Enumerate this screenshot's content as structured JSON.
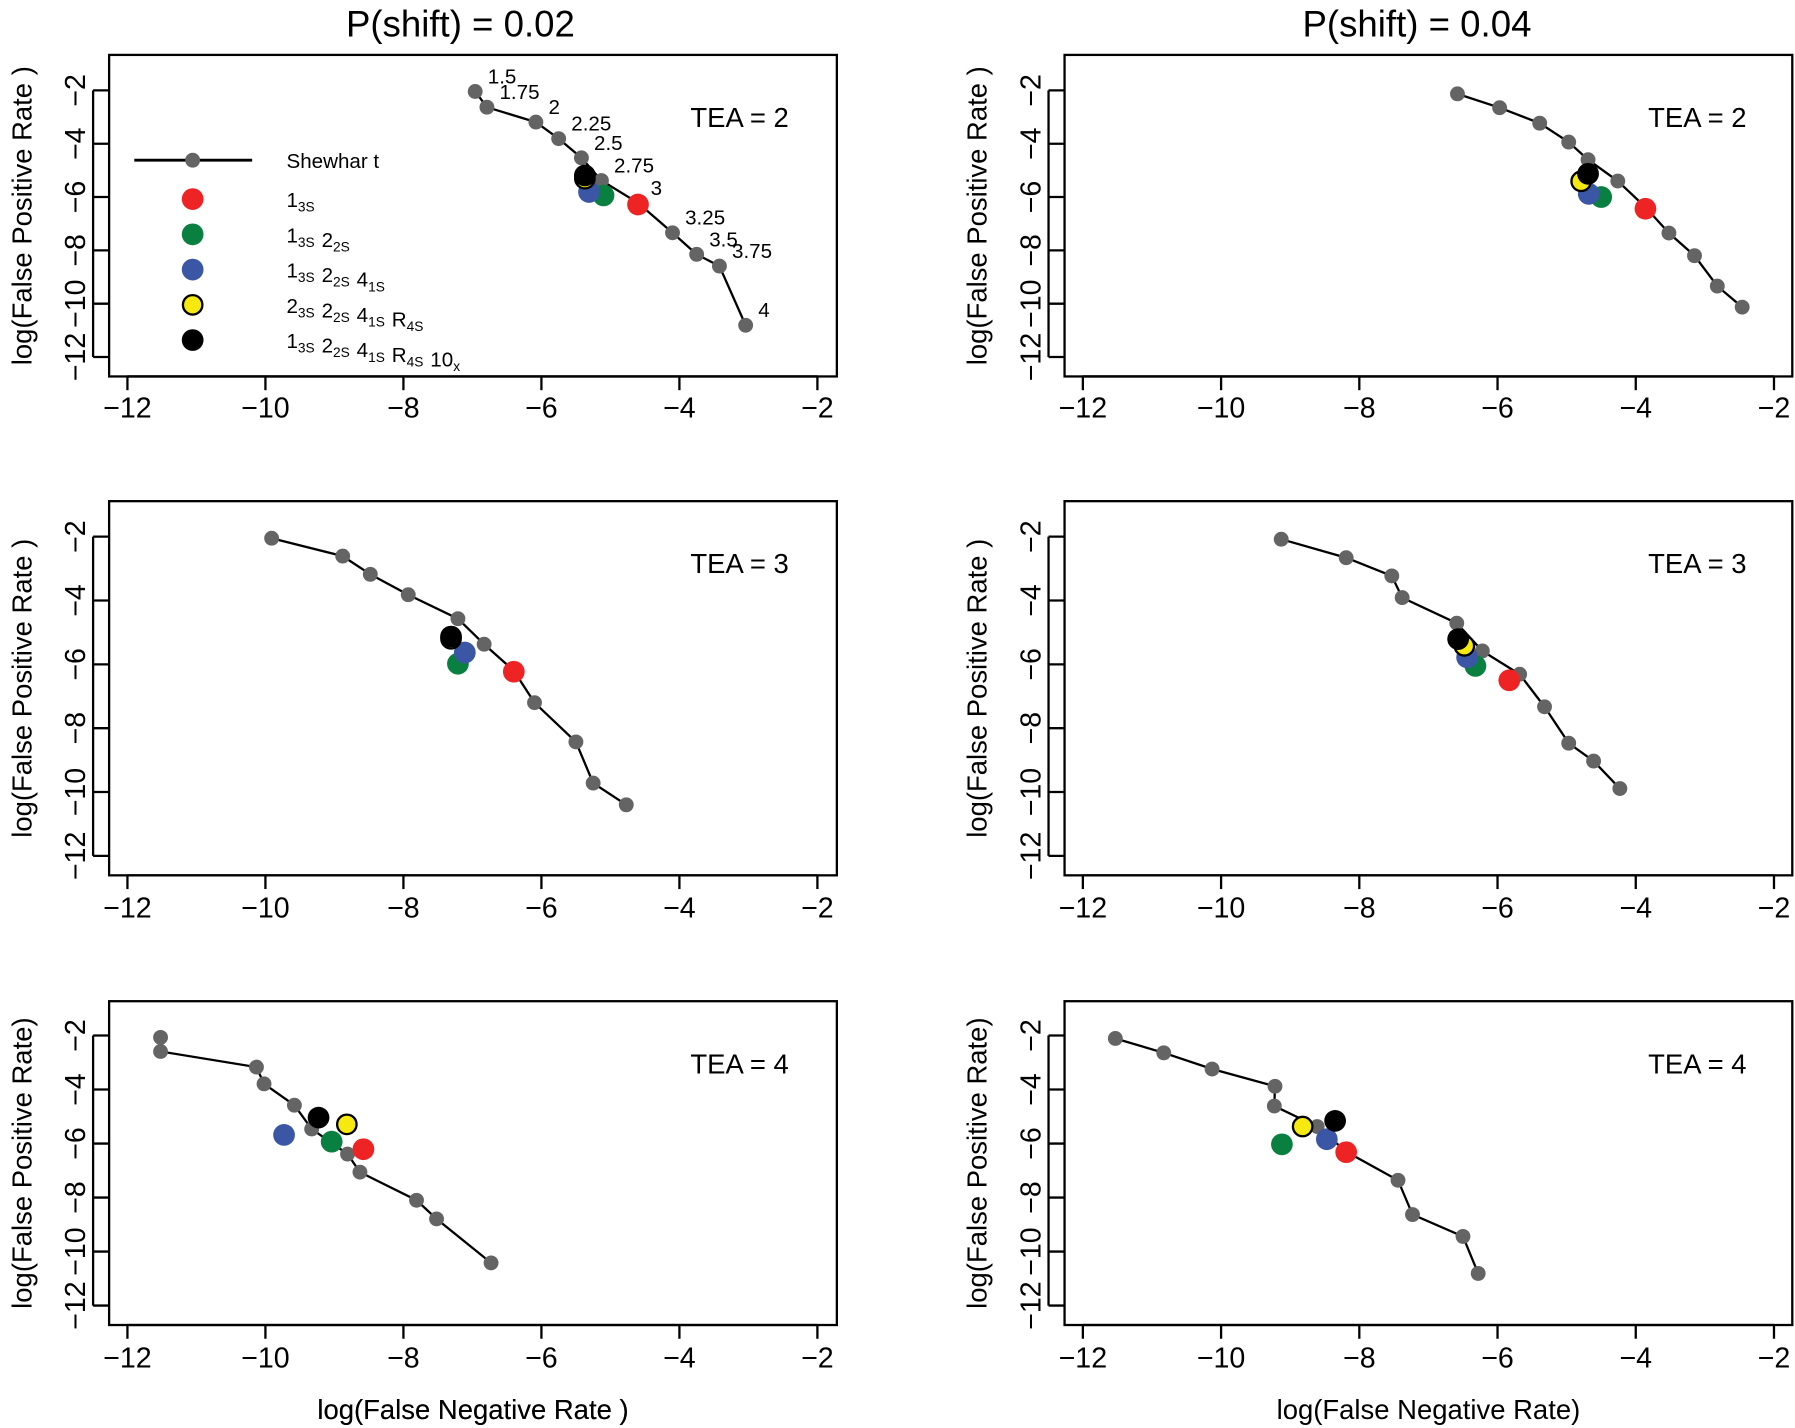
{
  "chart_data": [
    {
      "type": "line",
      "title": "P(shift) = 0.02",
      "annotation": "TEA =   2",
      "xlabel": "log(False Negative Rate    )",
      "ylabel": "log(False Positive Rate    )",
      "xlim": [
        -12,
        -2
      ],
      "ylim": [
        -12,
        -2
      ],
      "xticks": [
        "−12",
        "−10",
        "−8",
        "−6",
        "−4",
        "−2"
      ],
      "yticks": [
        "−2",
        "−4",
        "−6",
        "−8",
        "−10",
        "−12"
      ],
      "shewhart": {
        "name": "Shewhar t",
        "labels": [
          "1.5",
          "1.75",
          "2",
          "2.25",
          "2.5",
          "2.75",
          "3",
          "3.25",
          "3.5",
          "3.75",
          "4"
        ],
        "x": [
          -6.96,
          -6.79,
          -6.08,
          -5.75,
          -5.42,
          -5.13,
          -4.6,
          -4.1,
          -3.75,
          -3.42,
          -3.04
        ],
        "y": [
          -2.04,
          -2.63,
          -3.19,
          -3.81,
          -4.53,
          -5.38,
          -6.22,
          -7.34,
          -8.15,
          -8.59,
          -10.81
        ]
      },
      "rules": {
        "r13s": [
          -4.6,
          -6.28
        ],
        "r13s22s": [
          -5.1,
          -5.94
        ],
        "r13s22s41s": [
          -5.31,
          -5.81
        ],
        "r23s22s41sR4s": [
          -5.37,
          -5.31
        ],
        "r13s22s41sR4s10x": [
          -5.37,
          -5.19
        ]
      }
    },
    {
      "type": "line",
      "title": "P(shift) = 0.04",
      "annotation": "TEA =   2",
      "ylabel": "log(False Positive Rate    )",
      "xlim": [
        -12,
        -2
      ],
      "ylim": [
        -12,
        -2
      ],
      "xticks": [
        "−12",
        "−10",
        "−8",
        "−6",
        "−4",
        "−2"
      ],
      "yticks": [
        "−2",
        "−4",
        "−6",
        "−8",
        "−10",
        "−12"
      ],
      "shewhart": {
        "x": [
          -6.58,
          -5.97,
          -5.39,
          -4.97,
          -4.69,
          -4.26,
          -3.86,
          -3.52,
          -3.15,
          -2.82,
          -2.46
        ],
        "y": [
          -2.13,
          -2.65,
          -3.23,
          -3.94,
          -4.6,
          -5.4,
          -6.38,
          -7.35,
          -8.2,
          -9.34,
          -10.13
        ]
      },
      "rules": {
        "r13s": [
          -3.86,
          -6.44
        ],
        "r13s22s": [
          -4.5,
          -6.0
        ],
        "r13s22s41s": [
          -4.68,
          -5.88
        ],
        "r23s22s41sR4s": [
          -4.79,
          -5.41
        ],
        "r13s22s41sR4s10x": [
          -4.69,
          -5.13
        ]
      }
    },
    {
      "type": "line",
      "annotation": "TEA =   3",
      "ylabel": "log(False Positive Rate    )",
      "xlim": [
        -12,
        -2
      ],
      "ylim": [
        -12,
        -2
      ],
      "xticks": [
        "−12",
        "−10",
        "−8",
        "−6",
        "−4",
        "−2"
      ],
      "yticks": [
        "−2",
        "−4",
        "−6",
        "−8",
        "−10",
        "−12"
      ],
      "shewhart": {
        "x": [
          -9.91,
          -8.88,
          -8.48,
          -7.93,
          -7.21,
          -6.83,
          -6.4,
          -6.1,
          -5.5,
          -5.25,
          -4.77
        ],
        "y": [
          -2.05,
          -2.61,
          -3.18,
          -3.82,
          -4.57,
          -5.37,
          -6.2,
          -7.2,
          -8.43,
          -9.72,
          -10.4
        ]
      },
      "rules": {
        "r13s": [
          -6.4,
          -6.23
        ],
        "r13s22s": [
          -7.21,
          -5.98
        ],
        "r13s22s41s": [
          -7.11,
          -5.63
        ],
        "r23s22s41sR4s": [
          -7.31,
          -5.2
        ],
        "r13s22s41sR4s10x": [
          -7.31,
          -5.13
        ]
      }
    },
    {
      "type": "line",
      "annotation": "TEA =   3",
      "ylabel": "log(False Positive Rate    )",
      "xlim": [
        -12,
        -2
      ],
      "ylim": [
        -12,
        -2
      ],
      "xticks": [
        "−12",
        "−10",
        "−8",
        "−6",
        "−4",
        "−2"
      ],
      "yticks": [
        "−2",
        "−4",
        "−6",
        "−8",
        "−10",
        "−12"
      ],
      "shewhart": {
        "x": [
          -9.13,
          -8.19,
          -7.53,
          -7.38,
          -6.59,
          -6.22,
          -5.68,
          -5.32,
          -4.97,
          -4.61,
          -4.23
        ],
        "y": [
          -2.08,
          -2.66,
          -3.23,
          -3.91,
          -4.71,
          -5.58,
          -6.31,
          -7.33,
          -8.47,
          -9.03,
          -9.89
        ]
      },
      "rules": {
        "r13s": [
          -5.83,
          -6.5
        ],
        "r13s22s": [
          -6.32,
          -6.05
        ],
        "r13s22s41s": [
          -6.44,
          -5.78
        ],
        "r23s22s41sR4s": [
          -6.48,
          -5.42
        ],
        "r13s22s41sR4s10x": [
          -6.57,
          -5.21
        ]
      }
    },
    {
      "type": "line",
      "annotation": "TEA =   4",
      "xlabel": "log(False Negative Rate    )",
      "ylabel": "log(False Positive Rate)",
      "xlim": [
        -12,
        -2
      ],
      "ylim": [
        -12,
        -2
      ],
      "xticks": [
        "−12",
        "−10",
        "−8",
        "−6",
        "−4",
        "−2"
      ],
      "yticks": [
        "−2",
        "−4",
        "−6",
        "−8",
        "−10",
        "−12"
      ],
      "shewhart": {
        "x": [
          -11.52,
          -11.52,
          -10.13,
          -10.02,
          -9.58,
          -9.33,
          -8.81,
          -8.63,
          -7.81,
          -7.52,
          -6.73
        ],
        "y": [
          -2.07,
          -2.59,
          -3.17,
          -3.79,
          -4.58,
          -5.46,
          -6.39,
          -7.06,
          -8.1,
          -8.79,
          -10.42
        ]
      },
      "rules": {
        "r13s": [
          -8.58,
          -6.21
        ],
        "r13s22s": [
          -9.04,
          -5.93
        ],
        "r13s22s41s": [
          -9.73,
          -5.68
        ],
        "r23s22s41sR4s": [
          -8.82,
          -5.29
        ],
        "r13s22s41sR4s10x": [
          -9.23,
          -5.04
        ]
      }
    },
    {
      "type": "line",
      "annotation": "TEA =   4",
      "xlabel": "log(False Negative Rate)",
      "ylabel": "log(False Positive Rate)",
      "xlim": [
        -12,
        -2
      ],
      "ylim": [
        -12,
        -2
      ],
      "xticks": [
        "−12",
        "−10",
        "−8",
        "−6",
        "−4",
        "−2"
      ],
      "yticks": [
        "−2",
        "−4",
        "−6",
        "−8",
        "−10",
        "−12"
      ],
      "shewhart": {
        "x": [
          -11.53,
          -10.83,
          -10.13,
          -9.22,
          -9.23,
          -8.61,
          -8.19,
          -7.44,
          -7.23,
          -6.5,
          -6.28
        ],
        "y": [
          -2.11,
          -2.64,
          -3.24,
          -3.88,
          -4.61,
          -5.37,
          -6.3,
          -7.36,
          -8.63,
          -9.44,
          -10.81
        ]
      },
      "rules": {
        "r13s": [
          -8.19,
          -6.32
        ],
        "r13s22s": [
          -9.12,
          -6.03
        ],
        "r13s22s41s": [
          -8.47,
          -5.84
        ],
        "r23s22s41sR4s": [
          -8.82,
          -5.37
        ],
        "r13s22s41sR4s10x": [
          -8.35,
          -5.16
        ]
      }
    }
  ],
  "legend": {
    "placement": "top-left of first panel",
    "shewhart_label": "Shewhar t",
    "entries": [
      {
        "key": "r13s",
        "color": "#ee2424",
        "parts": [
          [
            "1",
            "3S"
          ]
        ]
      },
      {
        "key": "r13s22s",
        "color": "#0a8040",
        "parts": [
          [
            "1",
            "3S"
          ],
          [
            "2",
            "2S"
          ]
        ]
      },
      {
        "key": "r13s22s41s",
        "color": "#3a56a5",
        "parts": [
          [
            "1",
            "3S"
          ],
          [
            "2",
            "2S"
          ],
          [
            "4",
            "1S"
          ]
        ]
      },
      {
        "key": "r23s22s41sR4s",
        "color": "#f5e90f",
        "outline": "#000000",
        "parts": [
          [
            "2",
            "3S"
          ],
          [
            "2",
            "2S"
          ],
          [
            "4",
            "1S"
          ],
          [
            "R",
            "4S"
          ]
        ]
      },
      {
        "key": "r13s22s41sR4s10x",
        "color": "#000000",
        "parts": [
          [
            "1",
            "3S"
          ],
          [
            "2",
            "2S"
          ],
          [
            "4",
            "1S"
          ],
          [
            "R",
            "4S"
          ],
          [
            "10",
            "x"
          ]
        ]
      }
    ]
  },
  "colors": {
    "shewhart_point": "#646464",
    "line": "#000000"
  }
}
